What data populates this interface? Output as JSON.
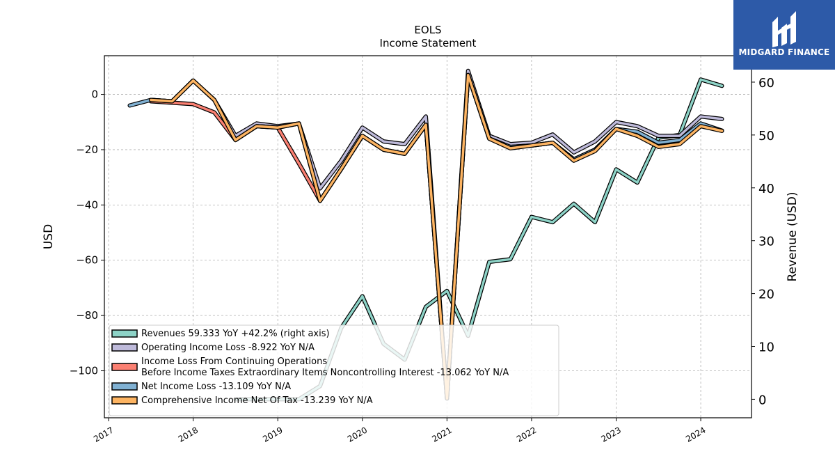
{
  "brand": {
    "name": "MIDGARD FINANCE",
    "bg": "#2d5aa8"
  },
  "chart_data": {
    "type": "line",
    "title": "EOLS",
    "subtitle": "Income Statement",
    "ylabel": "USD",
    "y2label": "Revenue (USD)",
    "ylim": [
      -117,
      14
    ],
    "y2lim": [
      -3.5,
      65
    ],
    "xlim": [
      2016.95,
      2024.6
    ],
    "yticks": [
      0,
      -20,
      -40,
      -60,
      -80,
      -100
    ],
    "ytick_labels": [
      "0",
      "−20",
      "−40",
      "−60",
      "−80",
      "−100"
    ],
    "y2ticks": [
      0,
      10,
      20,
      30,
      40,
      50,
      60
    ],
    "xticks": [
      2017,
      2018,
      2019,
      2020,
      2021,
      2022,
      2023,
      2024
    ],
    "grid": true,
    "legend_position": "lower-left",
    "series": [
      {
        "name": "Revenues  59.333 YoY +42.2% (right axis)",
        "label_lines": [
          "Revenues  59.333 YoY +42.2% (right axis)"
        ],
        "color": "#8dd3c7",
        "axis": "right",
        "x": [
          2018.5,
          2018.75,
          2019.0,
          2019.25,
          2019.5,
          2019.75,
          2020.0,
          2020.25,
          2020.5,
          2020.75,
          2021.0,
          2021.25,
          2021.5,
          2021.75,
          2022.0,
          2022.25,
          2022.5,
          2022.75,
          2023.0,
          2023.25,
          2023.5,
          2023.75,
          2024.0,
          2024.25
        ],
        "values": [
          0.0,
          0.0,
          0.0,
          0.0,
          2.5,
          13.5,
          19.5,
          10.5,
          7.5,
          17.5,
          20.5,
          12.0,
          26.0,
          26.5,
          34.5,
          33.5,
          37.0,
          33.5,
          43.5,
          41.0,
          49.5,
          50.0,
          60.5,
          59.3
        ]
      },
      {
        "name": "Operating Income Loss  -8.922 YoY N/A",
        "label_lines": [
          "Operating Income Loss  -8.922 YoY N/A"
        ],
        "color": "#bebada",
        "axis": "left",
        "x": [
          2017.5,
          2017.75,
          2018.0,
          2018.25,
          2018.5,
          2018.75,
          2019.0,
          2019.25,
          2019.5,
          2019.75,
          2020.0,
          2020.25,
          2020.5,
          2020.75,
          2021.0,
          2021.25,
          2021.5,
          2021.75,
          2022.0,
          2022.25,
          2022.5,
          2022.75,
          2023.0,
          2023.25,
          2023.5,
          2023.75,
          2024.0,
          2024.25
        ],
        "values": [
          -2.0,
          -2.5,
          5.0,
          -2.0,
          -15.0,
          -10.5,
          -11.5,
          -10.5,
          -34.0,
          -24.0,
          -12.0,
          -17.0,
          -18.0,
          -8.0,
          -110.0,
          8.5,
          -15.0,
          -18.0,
          -17.5,
          -14.5,
          -21.0,
          -17.0,
          -10.0,
          -11.5,
          -15.0,
          -15.0,
          -8.0,
          -8.9
        ]
      },
      {
        "name": "Income Loss From Continuing Operations Before Income Taxes Extraordinary Items Noncontrolling Interest  -13.062 YoY N/A",
        "label_lines": [
          "Income Loss From Continuing Operations",
          "Before Income Taxes Extraordinary Items Noncontrolling Interest  -13.062 YoY N/A"
        ],
        "color": "#fb8072",
        "axis": "left",
        "x": [
          2017.5,
          2017.75,
          2018.0,
          2018.25,
          2018.5,
          2018.75,
          2019.0,
          2019.25,
          2019.5,
          2019.75,
          2020.0,
          2020.25,
          2020.5,
          2020.75,
          2021.0,
          2021.25,
          2021.5,
          2021.75,
          2022.0,
          2022.25,
          2022.5,
          2022.75,
          2023.0,
          2023.25,
          2023.5,
          2023.75,
          2024.0,
          2024.25
        ],
        "values": [
          -2.5,
          -3.0,
          -3.5,
          -6.5,
          -16.5,
          -11.5,
          -12.0,
          -25.0,
          -38.5,
          -27.0,
          -15.0,
          -20.0,
          -21.5,
          -11.0,
          -110.0,
          7.0,
          -16.0,
          -19.0,
          -18.5,
          -17.5,
          -23.5,
          -20.0,
          -12.5,
          -14.0,
          -17.5,
          -17.0,
          -11.0,
          -13.1
        ]
      },
      {
        "name": "Net Income Loss  -13.109 YoY N/A",
        "label_lines": [
          "Net Income Loss  -13.109 YoY N/A"
        ],
        "color": "#80b1d3",
        "axis": "left",
        "x": [
          2017.25,
          2017.5,
          2017.75,
          2018.0,
          2018.25,
          2018.5,
          2018.75,
          2019.0,
          2019.25,
          2019.5,
          2019.75,
          2020.0,
          2020.25,
          2020.5,
          2020.75,
          2021.0,
          2021.25,
          2021.5,
          2021.75,
          2022.0,
          2022.25,
          2022.5,
          2022.75,
          2023.0,
          2023.25,
          2023.5,
          2023.75,
          2024.0,
          2024.25
        ],
        "values": [
          -4.0,
          -2.0,
          -2.5,
          5.0,
          -2.0,
          -16.5,
          -11.5,
          -12.0,
          -10.5,
          -38.5,
          -27.0,
          -15.0,
          -20.0,
          -21.5,
          -11.0,
          -110.0,
          7.0,
          -16.0,
          -19.0,
          -18.5,
          -17.5,
          -23.5,
          -20.0,
          -12.5,
          -13.5,
          -17.5,
          -16.5,
          -10.5,
          -13.1
        ]
      },
      {
        "name": "Comprehensive Income Net Of Tax  -13.239 YoY N/A",
        "label_lines": [
          "Comprehensive Income Net Of Tax  -13.239 YoY N/A"
        ],
        "color": "#fdb462",
        "axis": "left",
        "x": [
          2017.5,
          2017.75,
          2018.0,
          2018.25,
          2018.5,
          2018.75,
          2019.0,
          2019.25,
          2019.5,
          2019.75,
          2020.0,
          2020.25,
          2020.5,
          2020.75,
          2021.0,
          2021.25,
          2021.5,
          2021.75,
          2022.0,
          2022.25,
          2022.5,
          2022.75,
          2023.0,
          2023.25,
          2023.5,
          2023.75,
          2024.0,
          2024.25
        ],
        "values": [
          -2.0,
          -2.5,
          5.0,
          -2.0,
          -16.5,
          -11.5,
          -12.0,
          -10.5,
          -38.5,
          -27.0,
          -15.0,
          -20.0,
          -21.5,
          -11.0,
          -110.0,
          7.0,
          -16.0,
          -19.5,
          -18.5,
          -17.5,
          -24.0,
          -20.5,
          -12.5,
          -15.0,
          -19.0,
          -18.0,
          -11.5,
          -13.2
        ]
      }
    ]
  }
}
